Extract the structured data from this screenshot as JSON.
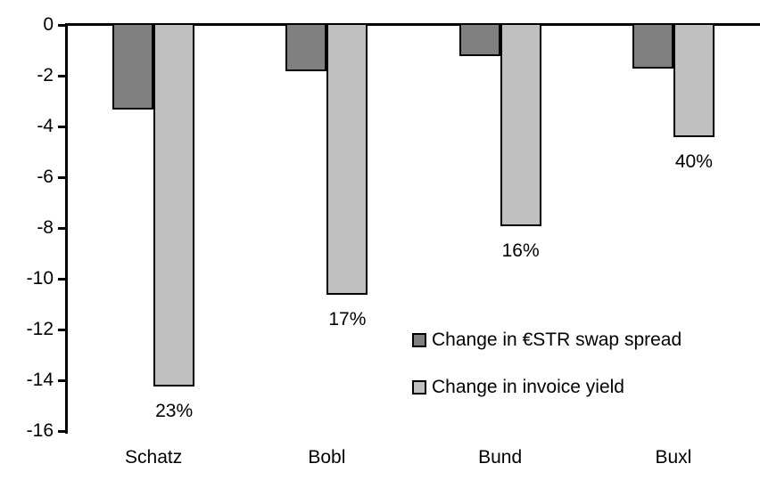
{
  "chart_data": {
    "type": "bar",
    "title": "",
    "xlabel": "",
    "ylabel": "",
    "categories": [
      "Schatz",
      "Bobl",
      "Bund",
      "Buxl"
    ],
    "series": [
      {
        "name": "Change in €STR swap spread",
        "color": "#808080",
        "values": [
          -3.3,
          -1.8,
          -1.2,
          -1.7
        ]
      },
      {
        "name": "Change in invoice yield",
        "color": "#c0c0c0",
        "values": [
          -14.2,
          -10.6,
          -7.9,
          -4.4
        ]
      }
    ],
    "bar_labels": {
      "attached_to_series": "Change in invoice yield",
      "values": [
        "23%",
        "17%",
        "16%",
        "40%"
      ]
    },
    "y_axis": {
      "min": -16,
      "max": 0,
      "step": -2,
      "tick_labels": [
        "0",
        "-2",
        "-4",
        "-6",
        "-8",
        "-10",
        "-12",
        "-14",
        "-16"
      ]
    },
    "grid": false,
    "legend": {
      "position": "inside-right",
      "entries": [
        "Change in €STR swap spread",
        "Change in invoice yield"
      ]
    },
    "colors": {
      "axis": "#000000",
      "bar_border": "#000000",
      "background": "#ffffff"
    }
  }
}
